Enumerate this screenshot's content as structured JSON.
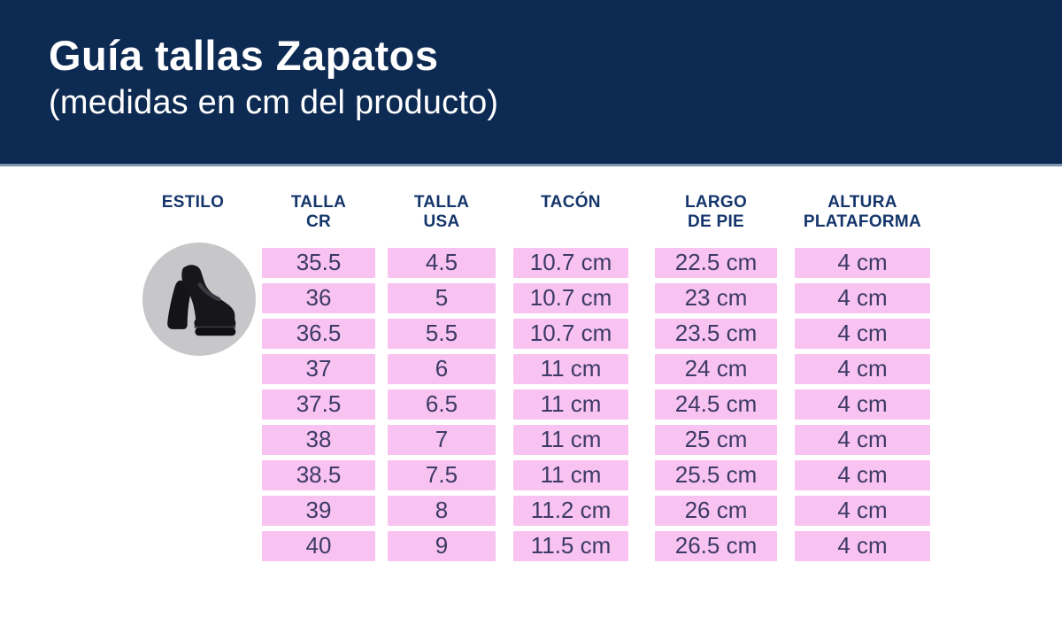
{
  "page": {
    "title": "Guía tallas Zapatos",
    "subtitle": "(medidas en cm del producto)"
  },
  "colors": {
    "banner_navy": "#0d2a52",
    "banner_edge": "#8195ae",
    "header_text_navy": "#14356b",
    "cell_pink": "#f9c3f1",
    "cell_text": "#3c3a66",
    "circle_gray": "#c7c6c9",
    "shoe_black": "#17161a"
  },
  "style_image": {
    "label": "platform-heel-loafer-shoe"
  },
  "table": {
    "columns": [
      {
        "id": "estilo",
        "line1": "ESTILO",
        "line2": ""
      },
      {
        "id": "talla-cr",
        "line1": "TALLA",
        "line2": "CR"
      },
      {
        "id": "talla-usa",
        "line1": "TALLA",
        "line2": "USA"
      },
      {
        "id": "tacon",
        "line1": "TACÓN",
        "line2": ""
      },
      {
        "id": "largo-de-pie",
        "line1": "LARGO",
        "line2": "DE PIE"
      },
      {
        "id": "altura-plataforma",
        "line1": "ALTURA",
        "line2": "PLATAFORMA"
      }
    ],
    "rows": [
      [
        "35.5",
        "4.5",
        "10.7 cm",
        "22.5 cm",
        "4 cm"
      ],
      [
        "36",
        "5",
        "10.7 cm",
        "23 cm",
        "4 cm"
      ],
      [
        "36.5",
        "5.5",
        "10.7 cm",
        "23.5 cm",
        "4 cm"
      ],
      [
        "37",
        "6",
        "11 cm",
        "24 cm",
        "4 cm"
      ],
      [
        "37.5",
        "6.5",
        "11 cm",
        "24.5 cm",
        "4 cm"
      ],
      [
        "38",
        "7",
        "11 cm",
        "25 cm",
        "4 cm"
      ],
      [
        "38.5",
        "7.5",
        "11 cm",
        "25.5 cm",
        "4 cm"
      ],
      [
        "39",
        "8",
        "11.2 cm",
        "26 cm",
        "4 cm"
      ],
      [
        "40",
        "9",
        "11.5 cm",
        "26.5 cm",
        "4 cm"
      ]
    ]
  }
}
